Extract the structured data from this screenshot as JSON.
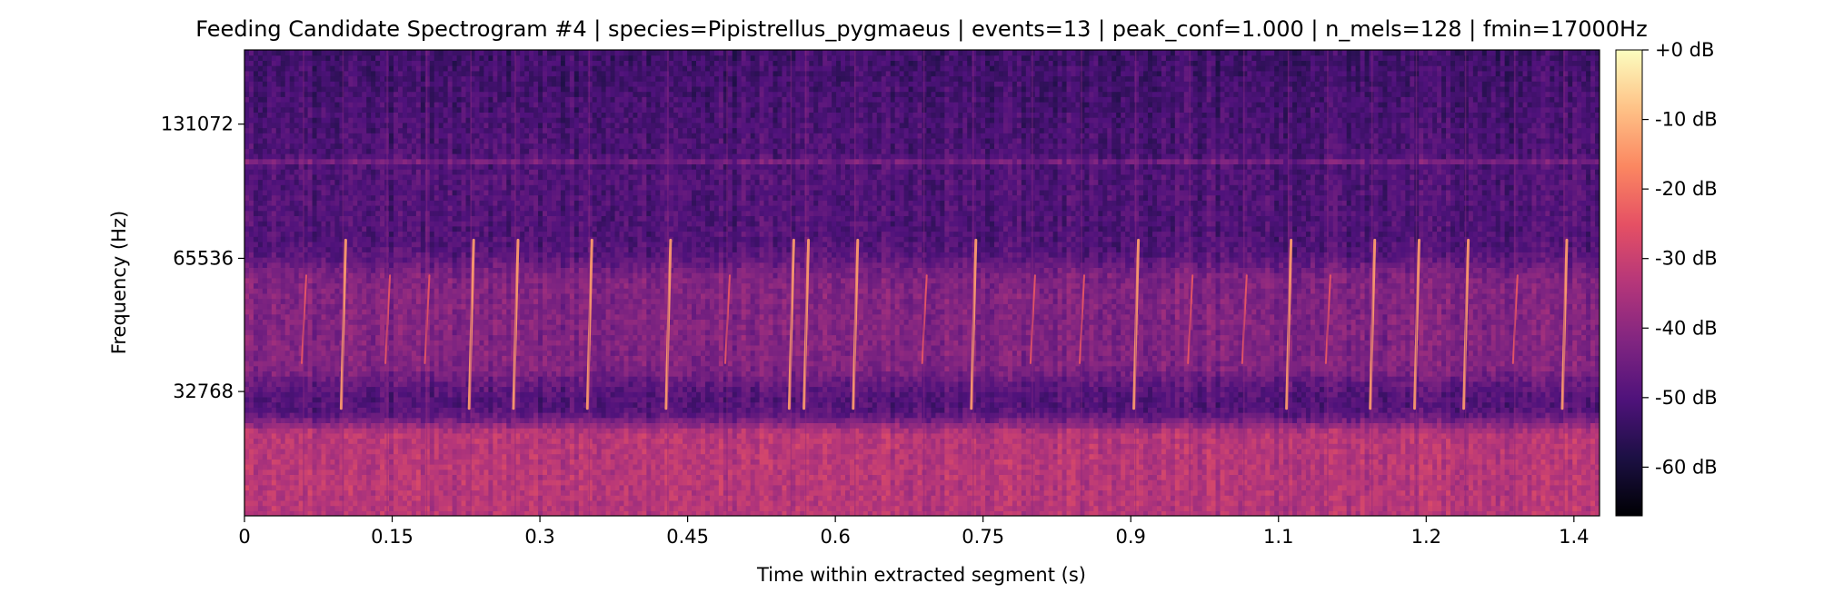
{
  "chart_data": {
    "type": "heatmap",
    "title": "Feeding Candidate Spectrogram #4 | species=Pipistrellus_pygmaeus | events=13 | peak_conf=1.000 | n_mels=128 | fmin=17000Hz",
    "xlabel": "Time within extracted segment (s)",
    "ylabel": "Frequency (Hz)",
    "x_ticks": [
      0,
      0.15,
      0.3,
      0.45,
      0.6,
      0.75,
      0.9,
      1.05,
      1.2,
      1.35
    ],
    "x_tick_labels": [
      "0",
      "0.15",
      "0.3",
      "0.45",
      "0.6",
      "0.75",
      "0.9",
      "1.1",
      "1.2",
      "1.4"
    ],
    "xlim": [
      0,
      1.376
    ],
    "y_scale": "mel",
    "y_ticks": [
      32768,
      65536,
      131072
    ],
    "y_tick_labels": [
      "32768",
      "65536",
      "131072"
    ],
    "ylim": [
      17000,
      192000
    ],
    "colormap": "magma",
    "colorbar": {
      "ticks": [
        0,
        -10,
        -20,
        -30,
        -40,
        -50,
        -60
      ],
      "labels": [
        "+0 dB",
        "-10 dB",
        "-20 dB",
        "-30 dB",
        "-40 dB",
        "-50 dB",
        "-60 dB"
      ],
      "range": [
        -67,
        0
      ]
    },
    "features": {
      "noise_band_hz": [
        17000,
        26000
      ],
      "noise_band_db": -33,
      "mid_band_hz": [
        38000,
        58000
      ],
      "mid_band_db": -42,
      "background_db": -50,
      "top_db": -53,
      "tone_line_hz": 109000,
      "tone_line_db": -42,
      "calls_s": [
        0.06,
        0.1,
        0.145,
        0.185,
        0.23,
        0.275,
        0.35,
        0.43,
        0.49,
        0.555,
        0.57,
        0.62,
        0.69,
        0.74,
        0.8,
        0.85,
        0.905,
        0.96,
        1.015,
        1.06,
        1.1,
        1.145,
        1.19,
        1.24,
        1.29,
        1.34
      ]
    }
  }
}
